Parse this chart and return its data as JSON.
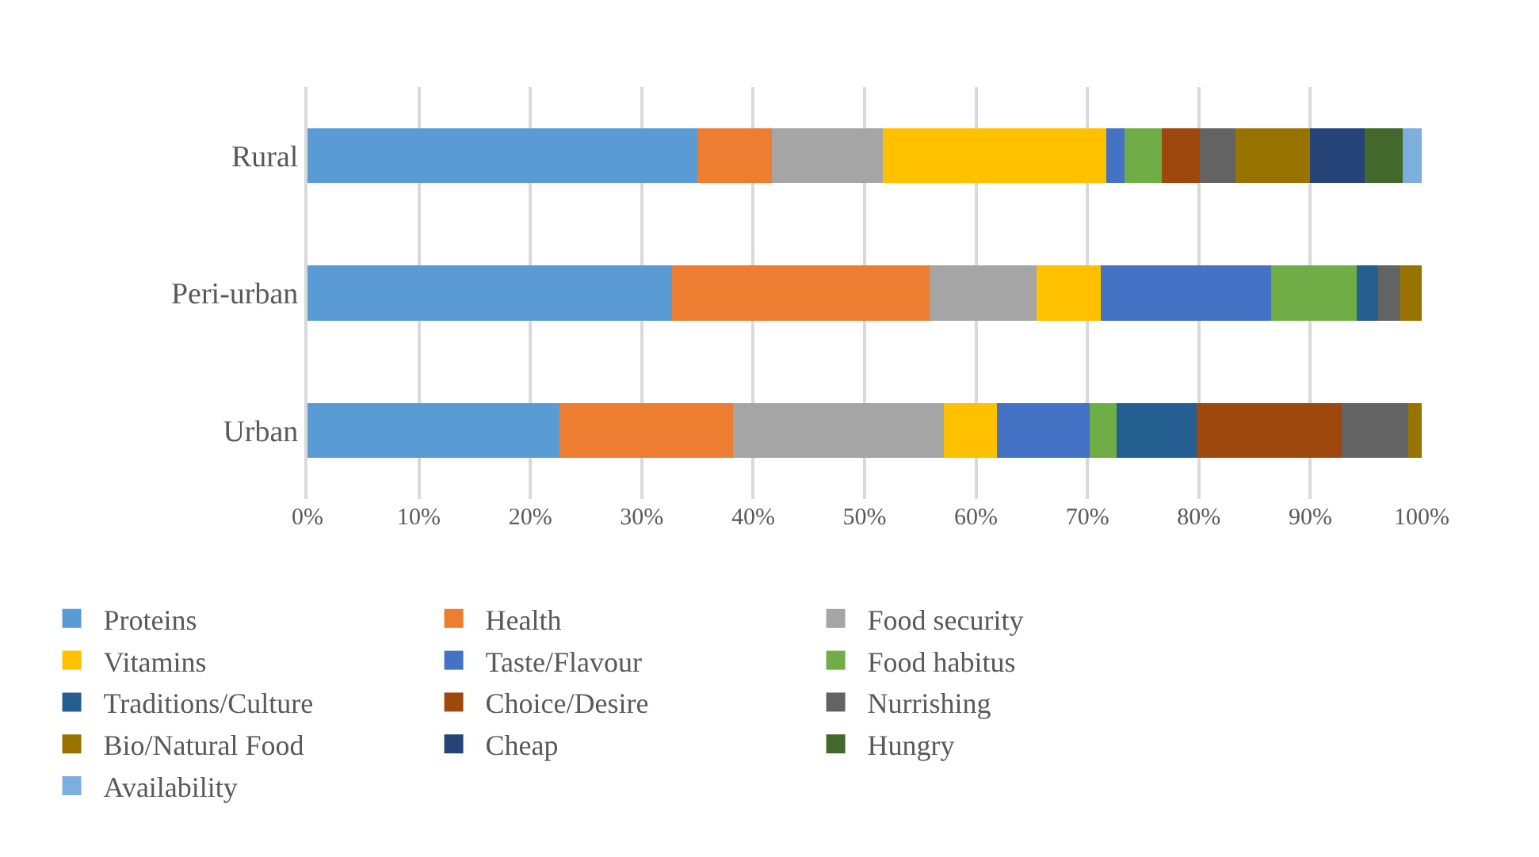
{
  "chart_data": {
    "type": "bar",
    "orientation": "horizontal",
    "stacked": true,
    "categories": [
      "Rural",
      "Peri-urban",
      "Urban"
    ],
    "series": [
      {
        "name": "Proteins",
        "color": "#5b9bd5",
        "values": [
          35.0,
          32.7,
          22.6
        ]
      },
      {
        "name": "Health",
        "color": "#ed7d31",
        "values": [
          6.7,
          23.1,
          15.6
        ]
      },
      {
        "name": "Food security",
        "color": "#a5a5a5",
        "values": [
          9.9,
          9.6,
          18.9
        ]
      },
      {
        "name": "Vitamins",
        "color": "#ffc000",
        "values": [
          20.1,
          5.8,
          4.8
        ]
      },
      {
        "name": "Taste/Flavour",
        "color": "#4472c4",
        "values": [
          1.6,
          15.3,
          8.3
        ]
      },
      {
        "name": "Food habitus",
        "color": "#70ad47",
        "values": [
          3.4,
          7.7,
          2.4
        ]
      },
      {
        "name": "Traditions/Culture",
        "color": "#255e91",
        "values": [
          0,
          1.9,
          7.2
        ]
      },
      {
        "name": "Choice/Desire",
        "color": "#9e480e",
        "values": [
          3.4,
          0,
          13.0
        ]
      },
      {
        "name": "Nurrishing",
        "color": "#636363",
        "values": [
          3.2,
          2.0,
          6.0
        ]
      },
      {
        "name": "Bio/Natural Food",
        "color": "#997300",
        "values": [
          6.7,
          1.9,
          1.2
        ]
      },
      {
        "name": "Cheap",
        "color": "#264478",
        "values": [
          4.9,
          0,
          0
        ]
      },
      {
        "name": "Hungry",
        "color": "#43682b",
        "values": [
          3.4,
          0,
          0
        ]
      },
      {
        "name": "Availability",
        "color": "#7cafdd",
        "values": [
          1.7,
          0,
          0
        ]
      }
    ],
    "xlim": [
      0,
      100
    ],
    "xticks": [
      {
        "value": 0,
        "label": "0%"
      },
      {
        "value": 10,
        "label": "10%"
      },
      {
        "value": 20,
        "label": "20%"
      },
      {
        "value": 30,
        "label": "30%"
      },
      {
        "value": 40,
        "label": "40%"
      },
      {
        "value": 50,
        "label": "50%"
      },
      {
        "value": 60,
        "label": "60%"
      },
      {
        "value": 70,
        "label": "70%"
      },
      {
        "value": 80,
        "label": "80%"
      },
      {
        "value": 90,
        "label": "90%"
      },
      {
        "value": 100,
        "label": "100%"
      }
    ],
    "grid": "x",
    "legend": "bottom"
  }
}
